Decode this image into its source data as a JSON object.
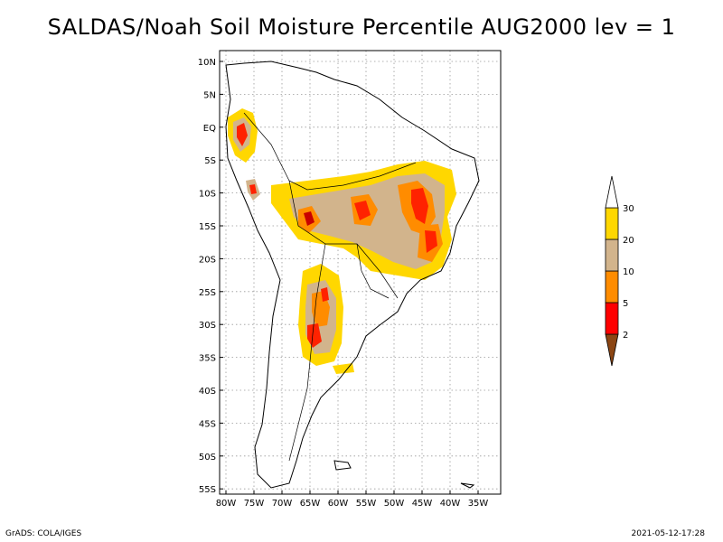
{
  "title": "SALDAS/Noah Soil Moisture Percentile AUG2000 lev = 1",
  "axes": {
    "lat_labels": [
      "10N",
      "5N",
      "EQ",
      "5S",
      "10S",
      "15S",
      "20S",
      "25S",
      "30S",
      "35S",
      "40S",
      "45S",
      "50S",
      "55S"
    ],
    "lon_labels": [
      "80W",
      "75W",
      "70W",
      "65W",
      "60W",
      "55W",
      "50W",
      "45W",
      "40W",
      "35W"
    ]
  },
  "legend": {
    "labels": [
      "2",
      "5",
      "10",
      "20",
      "30"
    ],
    "colors": [
      "#8b4513",
      "#ff0000",
      "#ff8c00",
      "#d2b48c",
      "#ffd700"
    ]
  },
  "colors": {
    "very_dry": "#c80000",
    "dry": "#ff2200",
    "mid": "#ff8c00",
    "light": "#d2b48c",
    "yellow": "#ffd700"
  },
  "footer": {
    "left": "GrADS: COLA/IGES",
    "right": "2021-05-12-17:28"
  }
}
